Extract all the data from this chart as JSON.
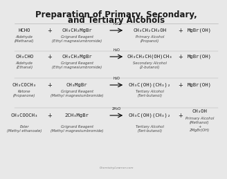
{
  "title_line1": "Preparation of Primary, Secondary,",
  "title_line2": "and Tertiary Alcohols",
  "bg_color": "#e8e8e8",
  "text_color": "#1a1a1a",
  "sub_color": "#444444",
  "rows": [
    {
      "r1": "HCHO",
      "r1s": "Aldehyde\n(Methanal)",
      "r2": "CH₃CH₂MgBr",
      "r2s": "Grignard Reagent\n(Ethyl magnesiumbromide)",
      "arw": "H₂O",
      "p1": "CH₃CH₂CH₂OH",
      "p1s": "Primary Alcohol\n(Propanol)",
      "p2": "MgBr(OH)"
    },
    {
      "r1": "CH₃CHO",
      "r1s": "Aldehyde\n(Ethanal)",
      "r2": "CH₃CH₂MgBr",
      "r2s": "Grignard Reagent\n(Ethyl magnesiumbromide)",
      "arw": "H₂O",
      "p1": "CH₃CH₂CH(OH)CH₃",
      "p1s": "Secondary Alcohol\n(2-butanol)",
      "p2": "MgBr(OH)"
    },
    {
      "r1": "CH₃COCH₃",
      "r1s": "Ketone\n(Propanone)",
      "r2": "CH₃MgBr",
      "r2s": "Grignard Reagent\n(Methyl magnesiumbromide)",
      "arw": "H₂O",
      "p1": "CH₃C(OH)(CH₃)₂",
      "p1s": "Tertiary Alcohol\n(Tert-butanol)",
      "p2": "MgBr(OH)"
    },
    {
      "r1": "CH₃COOCH₃",
      "r1s": "Ester\n(Methyl ethanoate)",
      "r2": "2CH₃MgBr",
      "r2s": "Grignard Reagent\n(Methyl magnesiumbromide)",
      "arw": "2H₂O",
      "p1": "CH₃C(OH)(CH₃)₂",
      "p1s": "Tertiary Alcohol\n(Tert-butanol)",
      "p2": "CH₃OH",
      "p2s": "Primary Alcohol\n(Methanol)\n+\n2MgBr(OH)"
    }
  ],
  "footer": "ChemistryLearner.com"
}
